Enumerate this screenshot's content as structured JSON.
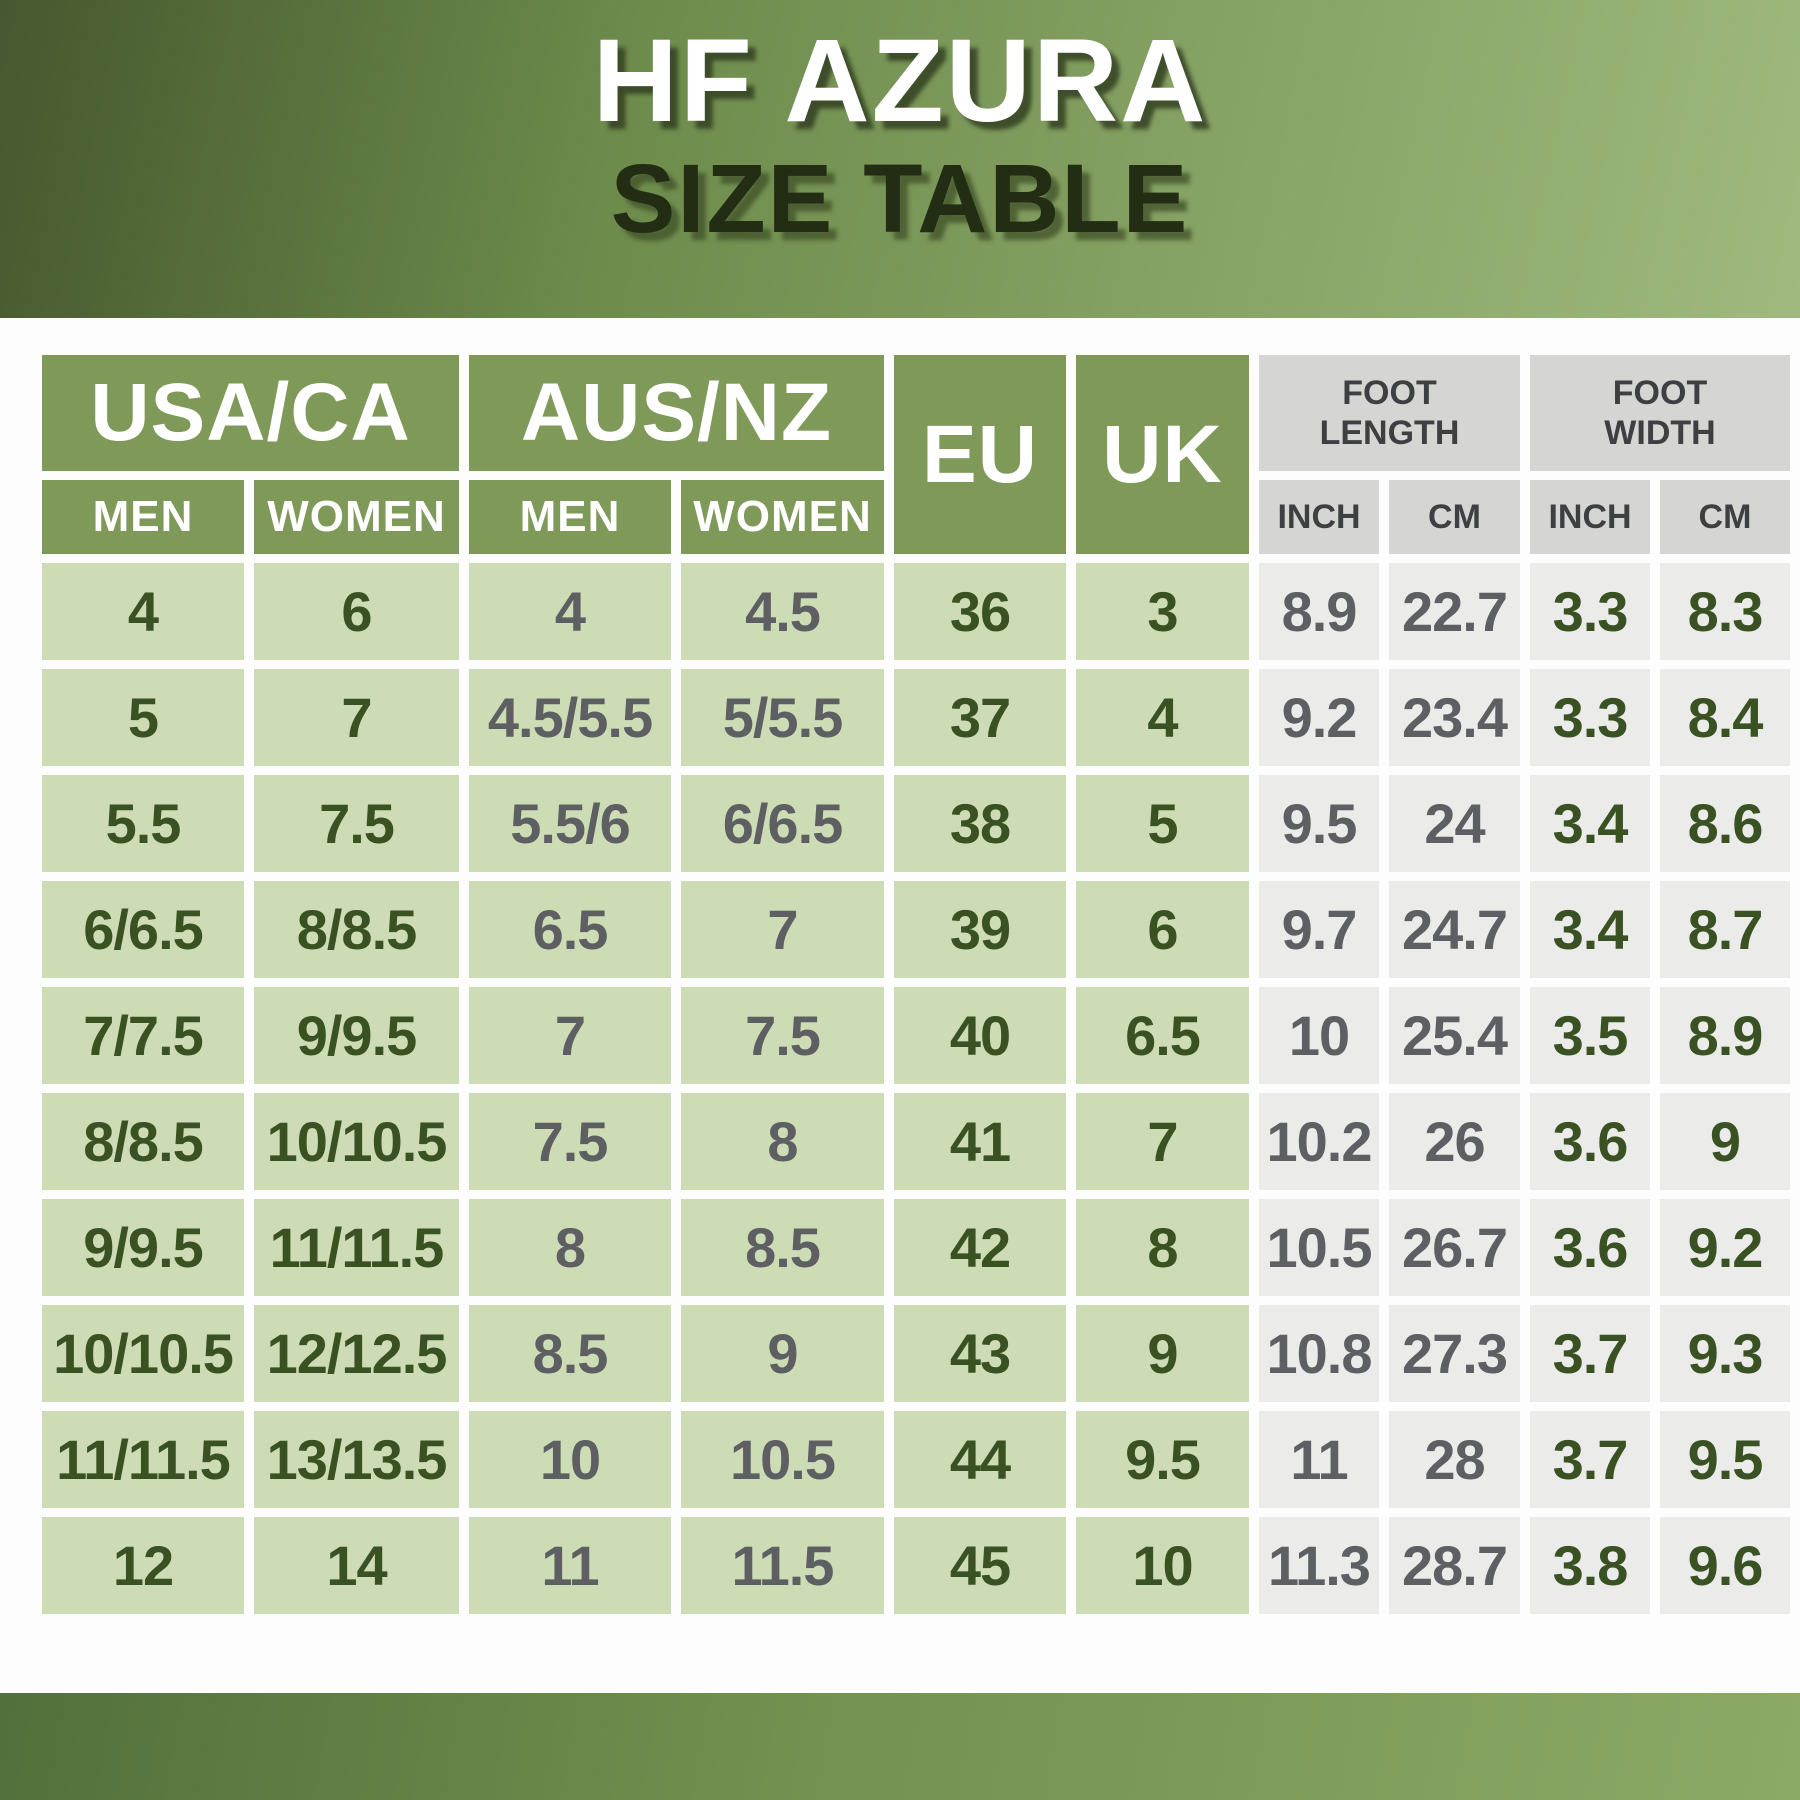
{
  "banner": {
    "title": "HF AZURA",
    "subtitle": "SIZE TABLE"
  },
  "table": {
    "groups": [
      {
        "label": "USA/CA",
        "sub": [
          "MEN",
          "WOMEN"
        ]
      },
      {
        "label": "AUS/NZ",
        "sub": [
          "MEN",
          "WOMEN"
        ]
      },
      {
        "label": "EU",
        "sub": []
      },
      {
        "label": "UK",
        "sub": []
      },
      {
        "label": "FOOT LENGTH",
        "sub": [
          "INCH",
          "CM"
        ]
      },
      {
        "label": "FOOT WIDTH",
        "sub": [
          "INCH",
          "CM"
        ]
      }
    ],
    "rows": [
      [
        "4",
        "6",
        "4",
        "4.5",
        "36",
        "3",
        "8.9",
        "22.7",
        "3.3",
        "8.3"
      ],
      [
        "5",
        "7",
        "4.5/5.5",
        "5/5.5",
        "37",
        "4",
        "9.2",
        "23.4",
        "3.3",
        "8.4"
      ],
      [
        "5.5",
        "7.5",
        "5.5/6",
        "6/6.5",
        "38",
        "5",
        "9.5",
        "24",
        "3.4",
        "8.6"
      ],
      [
        "6/6.5",
        "8/8.5",
        "6.5",
        "7",
        "39",
        "6",
        "9.7",
        "24.7",
        "3.4",
        "8.7"
      ],
      [
        "7/7.5",
        "9/9.5",
        "7",
        "7.5",
        "40",
        "6.5",
        "10",
        "25.4",
        "3.5",
        "8.9"
      ],
      [
        "8/8.5",
        "10/10.5",
        "7.5",
        "8",
        "41",
        "7",
        "10.2",
        "26",
        "3.6",
        "9"
      ],
      [
        "9/9.5",
        "11/11.5",
        "8",
        "8.5",
        "42",
        "8",
        "10.5",
        "26.7",
        "3.6",
        "9.2"
      ],
      [
        "10/10.5",
        "12/12.5",
        "8.5",
        "9",
        "43",
        "9",
        "10.8",
        "27.3",
        "3.7",
        "9.3"
      ],
      [
        "11/11.5",
        "13/13.5",
        "10",
        "10.5",
        "44",
        "9.5",
        "11",
        "28",
        "3.7",
        "9.5"
      ],
      [
        "12",
        "14",
        "11",
        "11.5",
        "45",
        "10",
        "11.3",
        "28.7",
        "3.8",
        "9.6"
      ]
    ]
  },
  "colors": {
    "banner_gradient_dark": "#46582f",
    "banner_gradient_light": "#9fb97e",
    "header_green": "#7f9959",
    "cell_green": "#cedcb6",
    "header_gray": "#d5d6d4",
    "cell_gray": "#ebebe9",
    "text_dark_green": "#3a5223",
    "text_gray": "#5d5f62",
    "text_charcoal": "#3e3f41",
    "text_white": "#ffffff",
    "title_text": "#ffffff",
    "subtitle_text": "#222d13"
  }
}
